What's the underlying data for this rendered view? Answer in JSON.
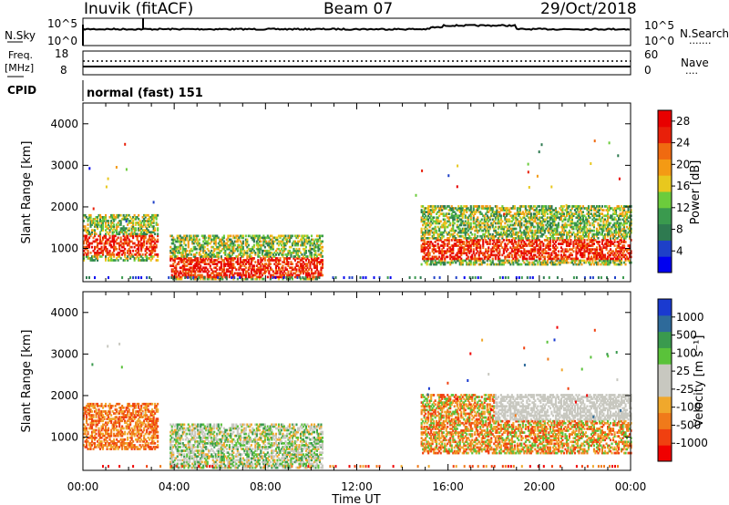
{
  "header": {
    "station": "Inuvik (fitACF)",
    "beam": "Beam 07",
    "date": "29/Oct/2018"
  },
  "sky_panel": {
    "left_label": "N.Sky",
    "right_label": "N.Search",
    "left_ticks": [
      "10^5",
      "10^0"
    ],
    "right_ticks": [
      "10^5",
      "10^0"
    ],
    "right_legend_marker": "·······"
  },
  "freq_panel": {
    "left_label_line1": "Freq.",
    "left_label_line2": "[MHz]",
    "left_ticks": [
      "18",
      "8"
    ],
    "right_label": "Nave",
    "right_ticks": [
      "60",
      "0"
    ],
    "right_legend_marker": "····"
  },
  "cpid_panel": {
    "label": "CPID",
    "mode": "normal (fast) 151"
  },
  "colors": {
    "power_scale": [
      "#0000f0",
      "#1e40c8",
      "#2e7a50",
      "#3a9a4e",
      "#6ccc3c",
      "#e8c81e",
      "#f49a14",
      "#f06a10",
      "#e8200a",
      "#e80000"
    ],
    "velocity_scale": [
      "#f00000",
      "#f04010",
      "#f07a1a",
      "#f0a82c",
      "#c8c8c0",
      "#c8c8c0",
      "#5ac23a",
      "#3a9a4e",
      "#2e6a9a",
      "#1a3ad0"
    ]
  },
  "chart_data": [
    {
      "type": "heatmap",
      "title": "",
      "xlabel": "",
      "ylabel": "Slant Range [km]",
      "xlim": [
        "00:00",
        "24:00"
      ],
      "ylim": [
        200,
        4500
      ],
      "x_ticks": [
        "00:00",
        "04:00",
        "08:00",
        "12:00",
        "16:00",
        "20:00",
        "00:00"
      ],
      "y_ticks": [
        1000,
        2000,
        3000,
        4000
      ],
      "colorbar": {
        "label": "Power [dB]",
        "ticks": [
          4,
          8,
          12,
          16,
          20,
          24,
          28
        ],
        "range": [
          0,
          30
        ]
      },
      "grid": false,
      "regions": [
        {
          "t": [
            0.0,
            3.3
          ],
          "range_km": [
            700,
            1800
          ],
          "level": "mixed 10-30 dB"
        },
        {
          "t": [
            3.8,
            10.5
          ],
          "range_km": [
            250,
            1300
          ],
          "level": "scattered 8-28 dB"
        },
        {
          "t": [
            14.8,
            24.0
          ],
          "range_km": [
            600,
            2000
          ],
          "level": "mixed 8-30 dB"
        }
      ]
    },
    {
      "type": "heatmap",
      "title": "",
      "xlabel": "Time UT",
      "ylabel": "Slant Range [km]",
      "xlim": [
        "00:00",
        "24:00"
      ],
      "ylim": [
        200,
        4500
      ],
      "x_ticks": [
        "00:00",
        "04:00",
        "08:00",
        "12:00",
        "16:00",
        "20:00",
        "00:00"
      ],
      "y_ticks": [
        1000,
        2000,
        3000,
        4000
      ],
      "colorbar": {
        "label": "Velocity [m s⁻¹]",
        "ticks": [
          1000,
          500,
          100,
          25,
          -25,
          -100,
          -500,
          -1000
        ]
      },
      "grid": false,
      "regions": [
        {
          "t": [
            0.0,
            3.3
          ],
          "range_km": [
            700,
            1800
          ],
          "level": "-100 to -500 m/s"
        },
        {
          "t": [
            3.8,
            10.5
          ],
          "range_km": [
            250,
            1300
          ],
          "level": "-25 to 100 m/s"
        },
        {
          "t": [
            14.8,
            24.0
          ],
          "range_km": [
            600,
            2000
          ],
          "level": "-500 to 25 m/s"
        }
      ]
    }
  ]
}
